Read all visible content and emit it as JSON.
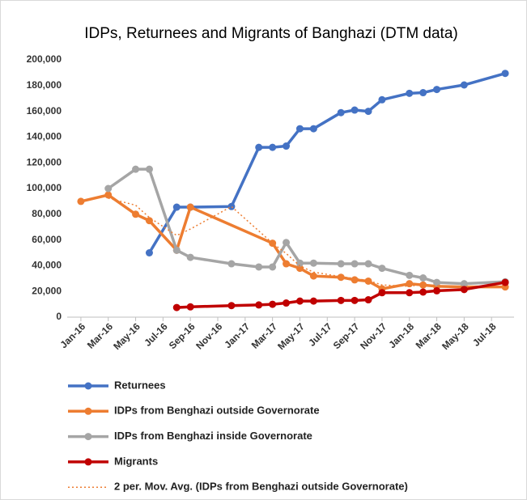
{
  "chart_data": {
    "type": "line",
    "title": "IDPs, Returnees and Migrants of Banghazi (DTM data)",
    "xlim": [
      "2015-12",
      "2018-09"
    ],
    "xticks": [
      {
        "value": "2016-01",
        "label": "Jan-16"
      },
      {
        "value": "2016-03",
        "label": "Mar-16"
      },
      {
        "value": "2016-05",
        "label": "May-16"
      },
      {
        "value": "2016-07",
        "label": "Jul-16"
      },
      {
        "value": "2016-09",
        "label": "Sep-16"
      },
      {
        "value": "2016-11",
        "label": "Nov-16"
      },
      {
        "value": "2017-01",
        "label": "Jan-17"
      },
      {
        "value": "2017-03",
        "label": "Mar-17"
      },
      {
        "value": "2017-05",
        "label": "May-17"
      },
      {
        "value": "2017-07",
        "label": "Jul-17"
      },
      {
        "value": "2017-09",
        "label": "Sep-17"
      },
      {
        "value": "2017-11",
        "label": "Nov-17"
      },
      {
        "value": "2018-01",
        "label": "Jan-18"
      },
      {
        "value": "2018-03",
        "label": "Mar-18"
      },
      {
        "value": "2018-05",
        "label": "May-18"
      },
      {
        "value": "2018-07",
        "label": "Jul-18"
      }
    ],
    "ylim": [
      0,
      200000
    ],
    "yticks": [
      0,
      {
        "value": 20000,
        "label": "20,000"
      },
      {
        "value": 40000,
        "label": "40,000"
      },
      {
        "value": 60000,
        "label": "60,000"
      },
      {
        "value": 80000,
        "label": "80,000"
      },
      {
        "value": 100000,
        "label": "100,000"
      },
      {
        "value": 120000,
        "label": "120,000"
      },
      {
        "value": 140000,
        "label": "140,000"
      },
      {
        "value": 160000,
        "label": "160,000"
      },
      {
        "value": 180000,
        "label": "180,000"
      },
      {
        "value": 200000,
        "label": "200,000"
      }
    ],
    "grid": false,
    "legend": "bottom",
    "series": [
      {
        "name": "Returnees",
        "color": "#4472c4",
        "marker": true,
        "dash": false,
        "x": [
          "2016-06",
          "2016-08",
          "2016-09",
          "2016-12",
          "2017-02",
          "2017-03",
          "2017-04",
          "2017-05",
          "2017-06",
          "2017-08",
          "2017-09",
          "2017-10",
          "2017-11",
          "2018-01",
          "2018-02",
          "2018-03",
          "2018-05",
          "2018-08"
        ],
        "values": [
          50000,
          85500,
          85500,
          86000,
          132000,
          132000,
          133000,
          146500,
          146500,
          159000,
          161000,
          160000,
          169000,
          174000,
          174500,
          177000,
          180500,
          189500
        ]
      },
      {
        "name": "IDPs from Benghazi outside Governorate",
        "color": "#ed7d31",
        "marker": true,
        "dash": false,
        "x": [
          "2016-01",
          "2016-03",
          "2016-05",
          "2016-06",
          "2016-08",
          "2016-09",
          "2017-03",
          "2017-04",
          "2017-05",
          "2017-06",
          "2017-08",
          "2017-09",
          "2017-10",
          "2017-11",
          "2018-01",
          "2018-02",
          "2018-03",
          "2018-05",
          "2018-08"
        ],
        "values": [
          90000,
          95000,
          80000,
          75000,
          52000,
          85500,
          57500,
          41500,
          38000,
          32000,
          31000,
          29000,
          28000,
          22000,
          26000,
          25000,
          24000,
          23500,
          23500
        ]
      },
      {
        "name": "IDPs from Benghazi inside Governorate",
        "color": "#a5a5a5",
        "marker": true,
        "dash": false,
        "x": [
          "2016-03",
          "2016-05",
          "2016-06",
          "2016-08",
          "2016-09",
          "2016-12",
          "2017-02",
          "2017-03",
          "2017-04",
          "2017-05",
          "2017-06",
          "2017-08",
          "2017-09",
          "2017-10",
          "2017-11",
          "2018-01",
          "2018-02",
          "2018-03",
          "2018-05",
          "2018-08"
        ],
        "values": [
          100000,
          115000,
          115000,
          52000,
          46500,
          41500,
          39000,
          39000,
          58000,
          42000,
          42000,
          41500,
          41500,
          41500,
          38000,
          32500,
          30500,
          27000,
          26000,
          27500
        ]
      },
      {
        "name": "Migrants",
        "color": "#c00000",
        "marker": true,
        "dash": false,
        "x": [
          "2016-08",
          "2016-09",
          "2016-12",
          "2017-02",
          "2017-03",
          "2017-04",
          "2017-05",
          "2017-06",
          "2017-08",
          "2017-09",
          "2017-10",
          "2017-11",
          "2018-01",
          "2018-02",
          "2018-03",
          "2018-05",
          "2018-08"
        ],
        "values": [
          7500,
          8000,
          9000,
          9500,
          10000,
          11000,
          12500,
          12500,
          13000,
          13000,
          13500,
          19000,
          19000,
          19500,
          20500,
          21500,
          27000
        ]
      },
      {
        "name": "2 per. Mov. Avg. (IDPs from Benghazi outside Governorate)",
        "color": "#ed7d31",
        "marker": false,
        "dash": true,
        "x": [
          "2016-03",
          "2016-05",
          "2016-06",
          "2016-08",
          "2016-09",
          "2016-12",
          "2017-03",
          "2017-04",
          "2017-05",
          "2017-06",
          "2017-08",
          "2017-09",
          "2017-10",
          "2017-11",
          "2018-01",
          "2018-02",
          "2018-03",
          "2018-05",
          "2018-08"
        ],
        "values": [
          92500,
          87000,
          77500,
          63500,
          68500,
          86000,
          57500,
          49500,
          39750,
          35000,
          31500,
          30000,
          28500,
          25000,
          24000,
          25500,
          24500,
          23750,
          23500
        ]
      }
    ]
  }
}
